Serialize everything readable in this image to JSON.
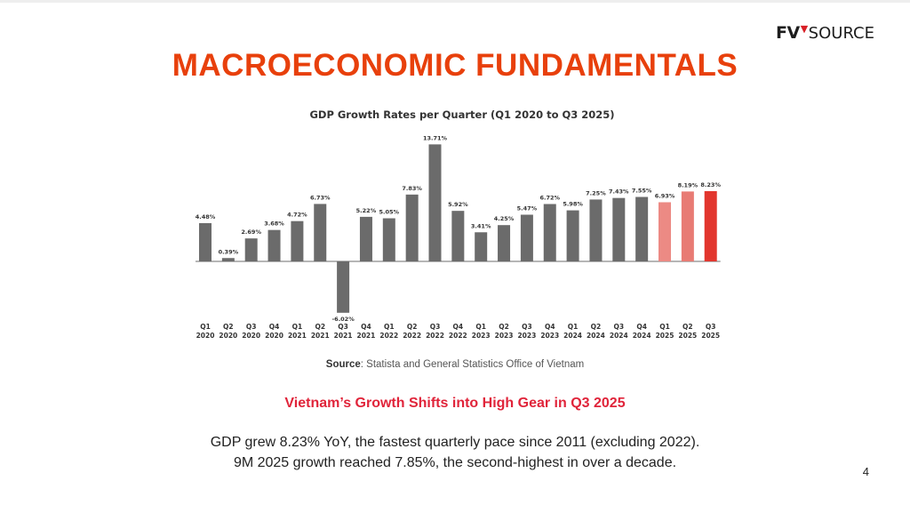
{
  "brand": {
    "logo_prefix": "FV",
    "logo_suffix": "SOURCE",
    "accent": "#d81f26"
  },
  "slide": {
    "title": "MACROECONOMIC FUNDAMENTALS",
    "source_label": "Source",
    "source_text": ": Statista and General Statistics Office of Vietnam",
    "subtitle": "Vietnam’s Growth Shifts into High Gear in Q3 2025",
    "body_line1": "GDP grew 8.23% YoY, the fastest quarterly pace since 2011 (excluding 2022).",
    "body_line2": "9M 2025 growth reached 7.85%, the second-highest in over a decade.",
    "page_number": "4"
  },
  "colors": {
    "bar_default": "#6b6b6b",
    "bar_2025_q1": "#ec8a84",
    "bar_2025_q2": "#e87b74",
    "bar_2025_q3": "#e2362e",
    "axis": "#8a8a8a",
    "title_orange": "#e8400c",
    "subtitle_red": "#e0243a"
  },
  "chart_data": {
    "type": "bar",
    "title": "GDP Growth Rates per Quarter (Q1 2020 to Q3 2025)",
    "xlabel": "",
    "ylabel": "",
    "grid": false,
    "ylim": [
      -6.02,
      13.71
    ],
    "categories": [
      [
        "Q1",
        "2020"
      ],
      [
        "Q2",
        "2020"
      ],
      [
        "Q3",
        "2020"
      ],
      [
        "Q4",
        "2020"
      ],
      [
        "Q1",
        "2021"
      ],
      [
        "Q2",
        "2021"
      ],
      [
        "Q3",
        "2021"
      ],
      [
        "Q4",
        "2021"
      ],
      [
        "Q1",
        "2022"
      ],
      [
        "Q2",
        "2022"
      ],
      [
        "Q3",
        "2022"
      ],
      [
        "Q4",
        "2022"
      ],
      [
        "Q1",
        "2023"
      ],
      [
        "Q2",
        "2023"
      ],
      [
        "Q3",
        "2023"
      ],
      [
        "Q4",
        "2023"
      ],
      [
        "Q1",
        "2024"
      ],
      [
        "Q2",
        "2024"
      ],
      [
        "Q3",
        "2024"
      ],
      [
        "Q4",
        "2024"
      ],
      [
        "Q1",
        "2025"
      ],
      [
        "Q2",
        "2025"
      ],
      [
        "Q3",
        "2025"
      ]
    ],
    "values": [
      4.48,
      0.39,
      2.69,
      3.68,
      4.72,
      6.73,
      -6.02,
      5.22,
      5.05,
      7.83,
      13.71,
      5.92,
      3.41,
      4.25,
      5.47,
      6.72,
      5.98,
      7.25,
      7.43,
      7.55,
      6.93,
      8.19,
      8.23
    ],
    "data_labels": [
      "4.48%",
      "0.39%",
      "2.69%",
      "3.68%",
      "4.72%",
      "6.73%",
      "-6.02%",
      "5.22%",
      "5.05%",
      "7.83%",
      "13.71%",
      "5.92%",
      "3.41%",
      "4.25%",
      "5.47%",
      "6.72%",
      "5.98%",
      "7.25%",
      "7.43%",
      "7.55%",
      "6.93%",
      "8.19%",
      "8.23%"
    ],
    "bar_colors": [
      "#6b6b6b",
      "#6b6b6b",
      "#6b6b6b",
      "#6b6b6b",
      "#6b6b6b",
      "#6b6b6b",
      "#6b6b6b",
      "#6b6b6b",
      "#6b6b6b",
      "#6b6b6b",
      "#6b6b6b",
      "#6b6b6b",
      "#6b6b6b",
      "#6b6b6b",
      "#6b6b6b",
      "#6b6b6b",
      "#6b6b6b",
      "#6b6b6b",
      "#6b6b6b",
      "#6b6b6b",
      "#ec8a84",
      "#e87b74",
      "#e2362e"
    ]
  }
}
